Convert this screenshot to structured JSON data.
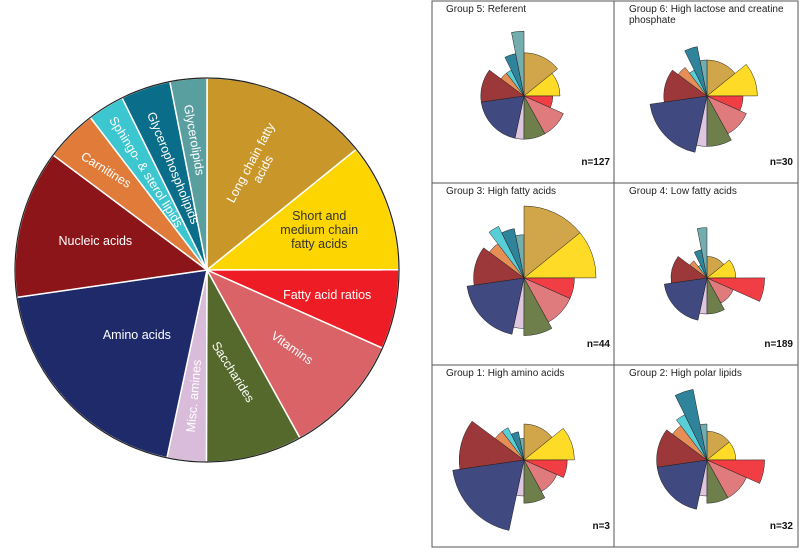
{
  "chart_data": [
    {
      "type": "pie",
      "categories": [
        "Long chain fatty acids",
        "Short and medium chain fatty acids",
        "Fatty acid ratios",
        "Vitamins",
        "Saccharides",
        "Misc. amines",
        "Amino acids",
        "Nucleic acids",
        "Carnitines",
        "Sphingo- & sterol lipids",
        "Glycerophospholipids",
        "Glycerolipids"
      ],
      "values": [
        14.2,
        10.8,
        6.7,
        10.3,
        8.1,
        3.3,
        19.4,
        12.5,
        4.4,
        3.1,
        4.2,
        3.1
      ],
      "colors": [
        "#c9962a",
        "#fdd500",
        "#ee1c24",
        "#d96366",
        "#55692d",
        "#d9bcd9",
        "#1f2a6b",
        "#8b1518",
        "#e07b39",
        "#3cc6d0",
        "#0a6e8a",
        "#5a9fa0"
      ]
    },
    {
      "type": "radial",
      "panels": [
        {
          "title": "Group 5: Referent",
          "n": "n=127",
          "values": [
            0.6,
            0.5,
            0.4,
            0.6,
            0.6,
            0.6,
            0.6,
            0.6,
            0.4,
            0.4,
            0.6,
            0.9
          ]
        },
        {
          "title": "Group 6: High lactose and creatine phosphate",
          "n": "n=30",
          "values": [
            0.5,
            0.7,
            0.5,
            0.6,
            0.7,
            0.7,
            0.8,
            0.6,
            0.5,
            0.4,
            0.7,
            0.5
          ]
        },
        {
          "title": "Group 3: High fatty acids",
          "n": "n=44",
          "values": [
            1.0,
            1.0,
            0.7,
            0.7,
            0.8,
            0.7,
            0.8,
            0.7,
            0.6,
            0.8,
            0.7,
            0.6
          ]
        },
        {
          "title": "Group 4: Low fatty acids",
          "n": "n=189",
          "values": [
            0.3,
            0.4,
            0.8,
            0.4,
            0.5,
            0.5,
            0.6,
            0.5,
            0.3,
            0.2,
            0.4,
            0.7
          ]
        },
        {
          "title": "Group 1: High amino acids",
          "n": "n=3",
          "values": [
            0.5,
            0.7,
            0.6,
            0.5,
            0.6,
            0.5,
            1.0,
            0.9,
            0.5,
            0.5,
            0.4,
            0.3
          ]
        },
        {
          "title": "Group 2: High polar lipids",
          "n": "n=32",
          "values": [
            0.4,
            0.4,
            0.8,
            0.6,
            0.6,
            0.5,
            0.7,
            0.7,
            0.6,
            0.7,
            1.0,
            0.5
          ]
        }
      ]
    }
  ]
}
